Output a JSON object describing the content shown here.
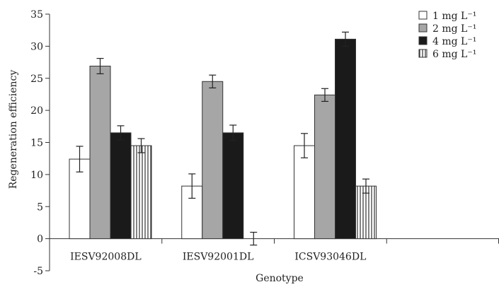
{
  "chart_data": {
    "type": "bar",
    "title": "",
    "xlabel": "Genotype",
    "ylabel": "Regeneration efficiency",
    "ylim": [
      -5,
      35
    ],
    "yticks": [
      -5,
      0,
      5,
      10,
      15,
      20,
      25,
      30,
      35
    ],
    "grid": false,
    "legend_position": "top-right",
    "categories": [
      "IESV92008DL",
      "IESV92001DL",
      "ICSV93046DL",
      ""
    ],
    "series": [
      {
        "name": "1 mg L⁻¹",
        "values": [
          12.4,
          8.2,
          14.5,
          null
        ],
        "errors": [
          2.0,
          1.9,
          1.9,
          null
        ],
        "color": "#ffffff",
        "pattern": "none"
      },
      {
        "name": "2 mg L⁻¹",
        "values": [
          26.9,
          24.5,
          22.4,
          null
        ],
        "errors": [
          1.2,
          1.0,
          1.0,
          null
        ],
        "color": "#a6a6a6",
        "pattern": "none"
      },
      {
        "name": "4 mg L⁻¹",
        "values": [
          16.5,
          16.5,
          31.1,
          null
        ],
        "errors": [
          1.1,
          1.2,
          1.1,
          null
        ],
        "color": "#1a1a1a",
        "pattern": "none"
      },
      {
        "name": "6 mg L⁻¹",
        "values": [
          14.5,
          0.0,
          8.2,
          null
        ],
        "errors": [
          1.1,
          1.0,
          1.1,
          null
        ],
        "color": "#ffffff",
        "pattern": "vertical-stripes"
      }
    ]
  }
}
